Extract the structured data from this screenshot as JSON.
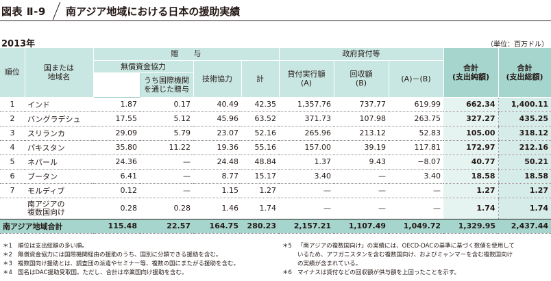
{
  "title": {
    "badge": "図表 Ⅱ-9",
    "text": "南アジア地域における日本の援助実績"
  },
  "year": "2013年",
  "unit": "（単位：百万ドル）",
  "headers": {
    "rank": "順位",
    "country_l1": "国または",
    "country_l2": "地域名",
    "grant": "贈　　与",
    "grant_aid": "無償資金協力",
    "intl_l1": "うち国際機関",
    "intl_l2": "を通じた贈与",
    "tech": "技術協力",
    "total": "計",
    "loans": "政府貸付等",
    "exec_l1": "貸付実行額",
    "exec_l2": "(A)",
    "repay_l1": "回収額",
    "repay_l2": "(B)",
    "net": "(A)－(B)",
    "sum_net_l1": "合計",
    "sum_net_l2": "(支出純額)",
    "sum_gross_l1": "合計",
    "sum_gross_l2": "(支出総額)"
  },
  "rows": [
    {
      "rank": "1",
      "name": "インド",
      "grant_aid": "1.87",
      "intl": "0.17",
      "tech": "40.49",
      "total": "42.35",
      "exec": "1,357.76",
      "repay": "737.77",
      "net": "619.99",
      "sum_net": "662.34",
      "sum_gross": "1,400.11"
    },
    {
      "rank": "2",
      "name": "バングラデシュ",
      "grant_aid": "17.55",
      "intl": "5.12",
      "tech": "45.96",
      "total": "63.52",
      "exec": "371.73",
      "repay": "107.98",
      "net": "263.75",
      "sum_net": "327.27",
      "sum_gross": "435.25"
    },
    {
      "rank": "3",
      "name": "スリランカ",
      "grant_aid": "29.09",
      "intl": "5.79",
      "tech": "23.07",
      "total": "52.16",
      "exec": "265.96",
      "repay": "213.12",
      "net": "52.83",
      "sum_net": "105.00",
      "sum_gross": "318.12"
    },
    {
      "rank": "4",
      "name": "パキスタン",
      "grant_aid": "35.80",
      "intl": "11.22",
      "tech": "19.36",
      "total": "55.16",
      "exec": "157.00",
      "repay": "39.19",
      "net": "117.81",
      "sum_net": "172.97",
      "sum_gross": "212.16"
    },
    {
      "rank": "5",
      "name": "ネパール",
      "grant_aid": "24.36",
      "intl": "—",
      "tech": "24.48",
      "total": "48.84",
      "exec": "1.37",
      "repay": "9.43",
      "net": "−8.07",
      "sum_net": "40.77",
      "sum_gross": "50.21"
    },
    {
      "rank": "6",
      "name": "ブータン",
      "grant_aid": "6.41",
      "intl": "—",
      "tech": "8.77",
      "total": "15.17",
      "exec": "3.40",
      "repay": "—",
      "net": "3.40",
      "sum_net": "18.58",
      "sum_gross": "18.58"
    },
    {
      "rank": "7",
      "name": "モルディブ",
      "grant_aid": "0.12",
      "intl": "—",
      "tech": "1.15",
      "total": "1.27",
      "exec": "—",
      "repay": "—",
      "net": "—",
      "sum_net": "1.27",
      "sum_gross": "1.27"
    }
  ],
  "multi_row": {
    "rank": "",
    "name_l1": "南アジアの",
    "name_l2": "複数国向け",
    "grant_aid": "0.28",
    "intl": "0.28",
    "tech": "1.46",
    "total": "1.74",
    "exec": "—",
    "repay": "—",
    "net": "—",
    "sum_net": "1.74",
    "sum_gross": "1.74"
  },
  "total_row": {
    "name": "南アジア地域合計",
    "grant_aid": "115.48",
    "intl": "22.57",
    "tech": "164.75",
    "total": "280.23",
    "exec": "2,157.21",
    "repay": "1,107.49",
    "net": "1,049.72",
    "sum_net": "1,329.95",
    "sum_gross": "2,437.44"
  },
  "notes_left": [
    {
      "mark": "＊1",
      "text": "順位は支出総額の多い順。"
    },
    {
      "mark": "＊2",
      "text": "無償資金協力には国際機関経由の援助のうち、国別に分類できる援助を含む。"
    },
    {
      "mark": "＊3",
      "text": "複数国向け援助とは、調査団の派遣やセミナー等、複数の国にまたがる援助を含む。"
    },
    {
      "mark": "＊4",
      "text": "国名はDAC援助受取国。ただし、合計は卒業国向け援助を含む。"
    }
  ],
  "notes_right": [
    {
      "mark": "＊5",
      "l1": "「南アジアの複数国向け」の実績には、OECD-DACの基準に基づく数値を使用して",
      "l2": "いるため、アフガニスタンを含む複数国向け、およびミャンマーを含む複数国向け",
      "l3": "の実績が含まれている。"
    },
    {
      "mark": "＊6",
      "l1": "マイナスは貸付などの回収額が供与額を上回ったことを示す。"
    }
  ],
  "colors": {
    "header": "#c9e7e2",
    "header_dark": "#a6d5cd",
    "shade_net": "#e6f4f1",
    "shade_gross": "#d6ece8"
  }
}
